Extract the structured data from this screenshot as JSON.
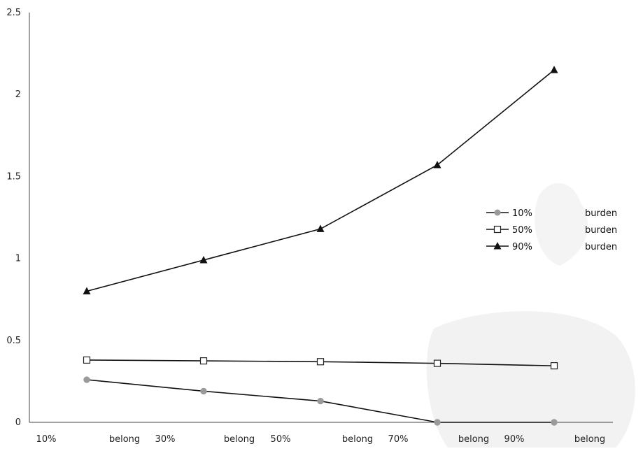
{
  "chart_data": {
    "type": "line",
    "x": [
      "10%",
      "30%",
      "50%",
      "70%",
      "90%"
    ],
    "ylim": [
      0,
      2.5
    ],
    "yticks": [
      "0",
      "0.5",
      "1",
      "1.5",
      "2",
      "2.5"
    ],
    "xtick_labels": [
      "10%",
      "belong",
      "30%",
      "belong",
      "50%",
      "belong",
      "70%",
      "belong",
      "90%",
      "belong"
    ],
    "grid": false,
    "legend_position": "right",
    "series": [
      {
        "name": "10%",
        "label_suffix": "burden",
        "marker": "circle",
        "color": "#9a9a9a",
        "values": [
          0.26,
          0.19,
          0.13,
          0.0,
          0.0
        ]
      },
      {
        "name": "50%",
        "label_suffix": "burden",
        "marker": "square",
        "color": "#ffffff",
        "values": [
          0.38,
          0.375,
          0.37,
          0.36,
          0.345
        ]
      },
      {
        "name": "90%",
        "label_suffix": "burden",
        "marker": "triangle",
        "color": "#111111",
        "values": [
          0.8,
          0.99,
          1.18,
          1.57,
          2.15
        ]
      }
    ]
  }
}
